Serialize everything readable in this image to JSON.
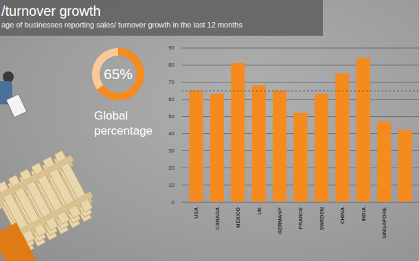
{
  "chart_data": [
    {
      "type": "bar",
      "title": "/turnover growth",
      "subtitle": "age of businesses reporting sales/ turnover growth in the last 12 months",
      "categories": [
        "USA",
        "CANADA",
        "MEXICO",
        "UK",
        "GERMANY",
        "FRANCE",
        "SWEDEN",
        "CHINA",
        "INDIA",
        "SINGAPORE",
        null
      ],
      "values": [
        65,
        63,
        81,
        68,
        65,
        52,
        63,
        75,
        84,
        47,
        42
      ],
      "color": "#f58a1f",
      "ylim": [
        0,
        90
      ],
      "yticks": [
        0,
        10,
        20,
        30,
        40,
        50,
        60,
        70,
        80,
        90
      ],
      "grid": true,
      "reference_line": 65
    },
    {
      "type": "donut",
      "title": "Global percentage",
      "values": [
        65,
        35
      ],
      "value_labels": [
        "65%",
        null
      ],
      "colors": [
        "#f58a1f",
        "#fac99a"
      ]
    }
  ]
}
